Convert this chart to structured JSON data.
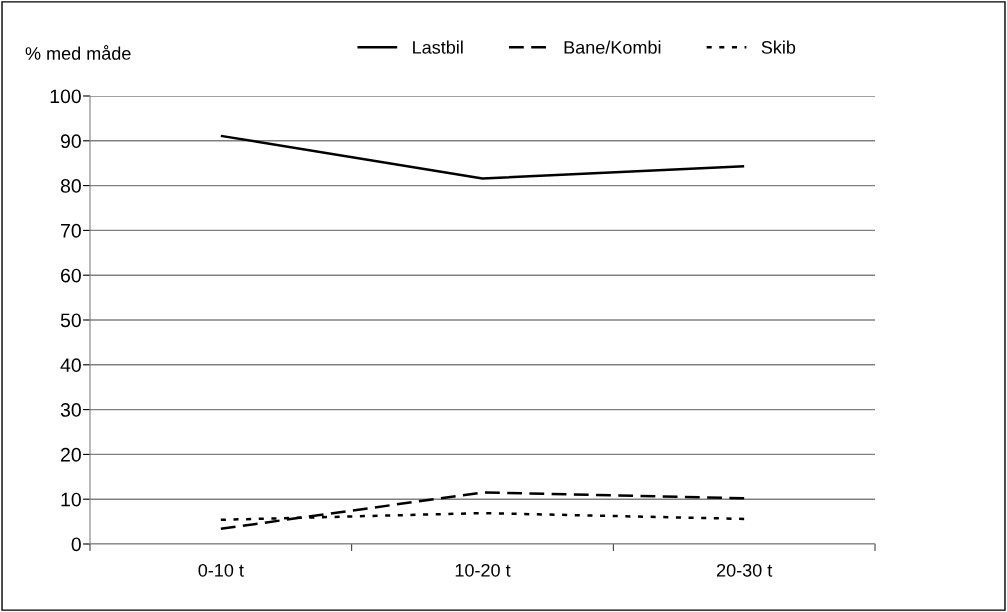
{
  "chart_data": {
    "type": "line",
    "ylabel": "% med måde",
    "categories": [
      "0-10 t",
      "10-20 t",
      "20-30 t"
    ],
    "series": [
      {
        "name": "Lastbil",
        "color": "#000000",
        "line_style": "solid",
        "values": [
          91.1,
          81.6,
          84.3
        ]
      },
      {
        "name": "Bane/Kombi",
        "color": "#000000",
        "line_style": "dashed",
        "values": [
          3.4,
          11.5,
          10.2
        ]
      },
      {
        "name": "Skib",
        "color": "#000000",
        "line_style": "dotted",
        "values": [
          5.4,
          6.9,
          5.6
        ]
      }
    ],
    "ylim": [
      0,
      100
    ],
    "yticks": [
      0,
      10,
      20,
      30,
      40,
      50,
      60,
      70,
      80,
      90,
      100
    ],
    "grid": "y",
    "legend": "top",
    "marker": "none"
  }
}
